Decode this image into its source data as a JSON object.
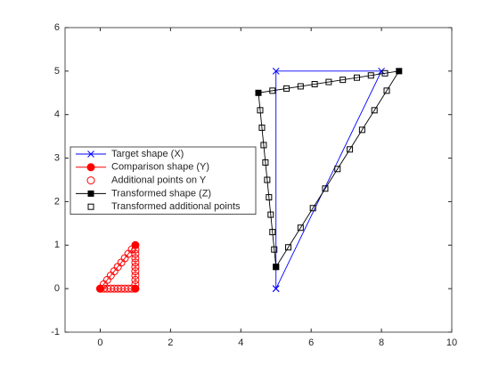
{
  "chart_data": {
    "type": "line",
    "xlim": [
      -1,
      10
    ],
    "ylim": [
      -1,
      6
    ],
    "xticks": [
      0,
      2,
      4,
      6,
      8,
      10
    ],
    "yticks": [
      -1,
      0,
      1,
      2,
      3,
      4,
      5,
      6
    ],
    "legend": "left",
    "series": [
      {
        "name": "Target shape (X)",
        "color": "#0000ff",
        "marker": "x",
        "filled": false,
        "line": true,
        "x": [
          5,
          5,
          8,
          5
        ],
        "y": [
          0,
          5,
          5,
          0
        ]
      },
      {
        "name": "Comparison shape (Y)",
        "color": "#ff0000",
        "marker": "o",
        "filled": true,
        "line": true,
        "x": [
          0,
          1,
          1,
          0
        ],
        "y": [
          0,
          0,
          1,
          0
        ]
      },
      {
        "name": "Additional points on Y",
        "color": "#ff0000",
        "marker": "o",
        "filled": false,
        "line": false,
        "x": [
          0.1,
          0.2,
          0.3,
          0.4,
          0.5,
          0.6,
          0.7,
          0.8,
          0.9,
          1,
          1,
          1,
          1,
          1,
          1,
          1,
          1,
          1,
          0.9,
          0.8,
          0.7,
          0.6,
          0.5,
          0.4,
          0.3,
          0.2,
          0.1
        ],
        "y": [
          0,
          0,
          0,
          0,
          0,
          0,
          0,
          0,
          0,
          0.1,
          0.2,
          0.3,
          0.4,
          0.5,
          0.6,
          0.7,
          0.8,
          0.9,
          0.9,
          0.8,
          0.7,
          0.6,
          0.5,
          0.4,
          0.3,
          0.2,
          0.1
        ]
      },
      {
        "name": "Transformed shape (Z)",
        "color": "#000000",
        "marker": "s",
        "filled": true,
        "line": true,
        "x": [
          5,
          8.5,
          4.5,
          5
        ],
        "y": [
          0.5,
          5,
          4.5,
          0.5
        ]
      },
      {
        "name": "Transformed additional points",
        "color": "#000000",
        "marker": "s",
        "filled": false,
        "line": false,
        "x": [
          5.35,
          5.7,
          6.05,
          6.4,
          6.75,
          7.1,
          7.45,
          7.8,
          8.15,
          8.1,
          7.7,
          7.3,
          6.9,
          6.5,
          6.1,
          5.7,
          5.3,
          4.9,
          4.55,
          4.6,
          4.65,
          4.7,
          4.75,
          4.8,
          4.85,
          4.9,
          4.95
        ],
        "y": [
          0.95,
          1.4,
          1.85,
          2.3,
          2.75,
          3.2,
          3.65,
          4.1,
          4.55,
          4.95,
          4.9,
          4.85,
          4.8,
          4.75,
          4.7,
          4.65,
          4.6,
          4.55,
          4.1,
          3.7,
          3.3,
          2.9,
          2.5,
          2.1,
          1.7,
          1.3,
          0.9
        ]
      }
    ]
  }
}
